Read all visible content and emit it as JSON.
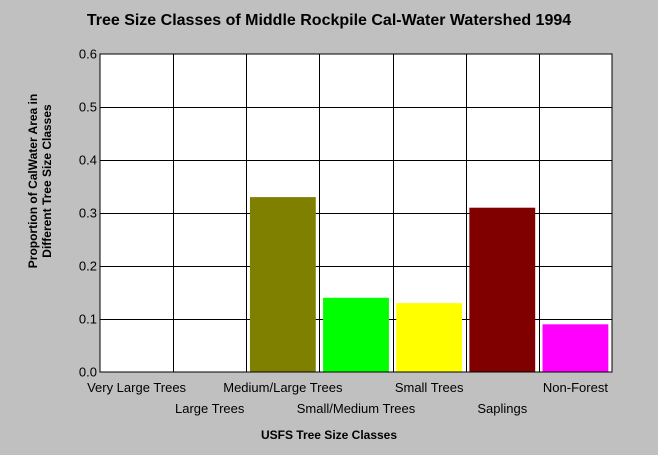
{
  "chart_data": {
    "type": "bar",
    "title": "Tree Size Classes of Middle Rockpile Cal-Water Watershed 1994",
    "xlabel": "USFS Tree Size Classes",
    "ylabel_line1": "Proportion of CalWater Area in",
    "ylabel_line2": "Different Tree Size Classes",
    "categories": [
      "Very Large Trees",
      "Large Trees",
      "Medium/Large Trees",
      "Small/Medium Trees",
      "Small Trees",
      "Saplings",
      "Non-Forest"
    ],
    "values": [
      0,
      0,
      0.33,
      0.14,
      0.13,
      0.31,
      0.09
    ],
    "colors": [
      "#808080",
      "#808080",
      "#808000",
      "#00ff00",
      "#ffff00",
      "#800000",
      "#ff00ff"
    ],
    "ylim": [
      0,
      0.6
    ],
    "yticks": [
      "0.0",
      "0.1",
      "0.2",
      "0.3",
      "0.4",
      "0.5",
      "0.6"
    ],
    "grid": true,
    "legend": "none"
  }
}
